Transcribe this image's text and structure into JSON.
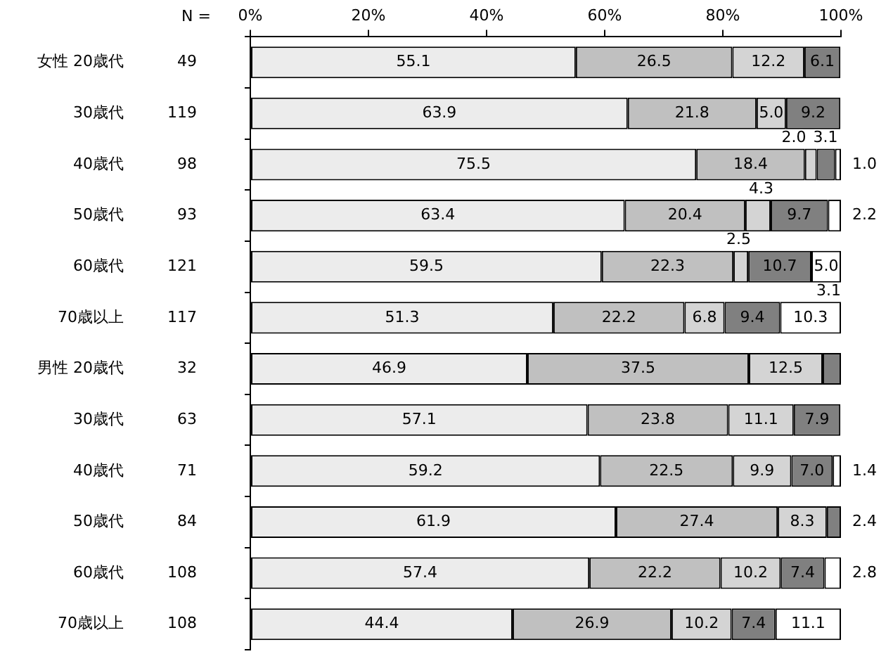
{
  "chart_data": {
    "type": "bar",
    "orientation": "horizontal",
    "stacked": true,
    "legend": false,
    "grid": false,
    "categories": [
      "女性 20歳代",
      "30歳代",
      "40歳代",
      "50歳代",
      "60歳代",
      "70歳以上",
      "男性 20歳代",
      "30歳代",
      "40歳代",
      "50歳代",
      "60歳代",
      "70歳以上"
    ],
    "xlim": [
      0,
      100
    ],
    "xticks": [
      {
        "value": 0,
        "label": "0%"
      },
      {
        "value": 20,
        "label": "20%"
      },
      {
        "value": 40,
        "label": "40%"
      },
      {
        "value": 60,
        "label": "60%"
      },
      {
        "value": 80,
        "label": "80%"
      },
      {
        "value": 100,
        "label": "100%"
      }
    ],
    "series": [
      {
        "color": "#ececec",
        "values": [
          55.1,
          63.9,
          75.5,
          63.4,
          59.5,
          51.3,
          46.9,
          57.1,
          59.2,
          61.9,
          57.4,
          44.4
        ],
        "value_labels": [
          "55.1",
          "63.9",
          "75.5",
          "63.4",
          "59.5",
          "51.3",
          "46.9",
          "57.1",
          "59.2",
          "61.9",
          "57.4",
          "44.4"
        ]
      },
      {
        "color": "#c0c0c0",
        "values": [
          26.5,
          21.8,
          18.4,
          20.4,
          22.3,
          22.2,
          37.5,
          23.8,
          22.5,
          27.4,
          22.2,
          26.9
        ],
        "value_labels": [
          "26.5",
          "21.8",
          "18.4",
          "20.4",
          "22.3",
          "22.2",
          "37.5",
          "23.8",
          "22.5",
          "27.4",
          "22.2",
          "26.9"
        ]
      },
      {
        "color": "#d4d4d4",
        "values": [
          12.2,
          5.0,
          2.0,
          4.3,
          2.5,
          6.8,
          12.5,
          11.1,
          9.9,
          8.3,
          10.2,
          10.2
        ],
        "value_labels": [
          "12.2",
          "5.0",
          "2.0",
          "4.3",
          "2.5",
          "6.8",
          "12.5",
          "11.1",
          "9.9",
          "8.3",
          "10.2",
          "10.2"
        ]
      },
      {
        "color": "#808080",
        "values": [
          6.1,
          9.2,
          3.1,
          9.7,
          10.7,
          9.4,
          3.1,
          7.9,
          7.0,
          2.4,
          7.4,
          7.4
        ],
        "value_labels": [
          "6.1",
          "9.2",
          "3.1",
          "9.7",
          "10.7",
          "9.4",
          null,
          "7.9",
          "7.0",
          "2.4",
          "7.4",
          "7.4"
        ]
      },
      {
        "color": "#ffffff",
        "values": [
          null,
          null,
          1.0,
          2.2,
          5.0,
          10.3,
          null,
          null,
          1.4,
          null,
          2.8,
          11.1
        ],
        "value_labels": [
          null,
          null,
          "1.0",
          "2.2",
          "5.0",
          "10.3",
          null,
          null,
          "1.4",
          null,
          "2.8",
          "11.1"
        ]
      }
    ],
    "annotations": [
      "N =",
      "49",
      "119",
      "98",
      "93",
      "121",
      "117",
      "32",
      "63",
      "71",
      "84",
      "108",
      "108",
      {
        "text": "3.1",
        "x": 100,
        "y": "70歳以上"
      }
    ]
  }
}
